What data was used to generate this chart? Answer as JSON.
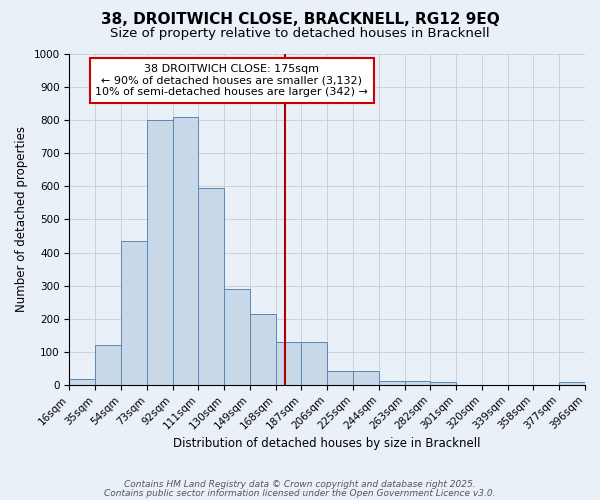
{
  "title": "38, DROITWICH CLOSE, BRACKNELL, RG12 9EQ",
  "subtitle": "Size of property relative to detached houses in Bracknell",
  "xlabel": "Distribution of detached houses by size in Bracknell",
  "ylabel": "Number of detached properties",
  "bin_labels": [
    "16sqm",
    "35sqm",
    "54sqm",
    "73sqm",
    "92sqm",
    "111sqm",
    "130sqm",
    "149sqm",
    "168sqm",
    "187sqm",
    "206sqm",
    "225sqm",
    "244sqm",
    "263sqm",
    "282sqm",
    "301sqm",
    "320sqm",
    "339sqm",
    "358sqm",
    "377sqm",
    "396sqm"
  ],
  "bin_left_edges": [
    16,
    35,
    54,
    73,
    92,
    111,
    130,
    149,
    168,
    187,
    206,
    225,
    244,
    263,
    282,
    301,
    320,
    339,
    358,
    377
  ],
  "bin_width": 19,
  "bar_heights": [
    18,
    120,
    435,
    800,
    810,
    595,
    290,
    215,
    130,
    130,
    42,
    42,
    12,
    12,
    10,
    0,
    0,
    0,
    0,
    8
  ],
  "bar_color": "#c8d8e8",
  "bar_edge_color": "#5b87b5",
  "vline_x": 175,
  "vline_color": "#aa0000",
  "ylim": [
    0,
    1000
  ],
  "yticks": [
    0,
    100,
    200,
    300,
    400,
    500,
    600,
    700,
    800,
    900,
    1000
  ],
  "xtick_positions": [
    16,
    35,
    54,
    73,
    92,
    111,
    130,
    149,
    168,
    187,
    206,
    225,
    244,
    263,
    282,
    301,
    320,
    339,
    358,
    377,
    396
  ],
  "annotation_text": "38 DROITWICH CLOSE: 175sqm\n← 90% of detached houses are smaller (3,132)\n10% of semi-detached houses are larger (342) →",
  "annotation_box_color": "#ffffff",
  "annotation_box_edge": "#cc0000",
  "grid_color": "#cccccc",
  "background_color": "#eaf0f8",
  "footer_line1": "Contains HM Land Registry data © Crown copyright and database right 2025.",
  "footer_line2": "Contains public sector information licensed under the Open Government Licence v3.0.",
  "title_fontsize": 11,
  "subtitle_fontsize": 9.5,
  "axis_label_fontsize": 8.5,
  "tick_fontsize": 7.5,
  "annotation_fontsize": 8,
  "footer_fontsize": 6.5
}
